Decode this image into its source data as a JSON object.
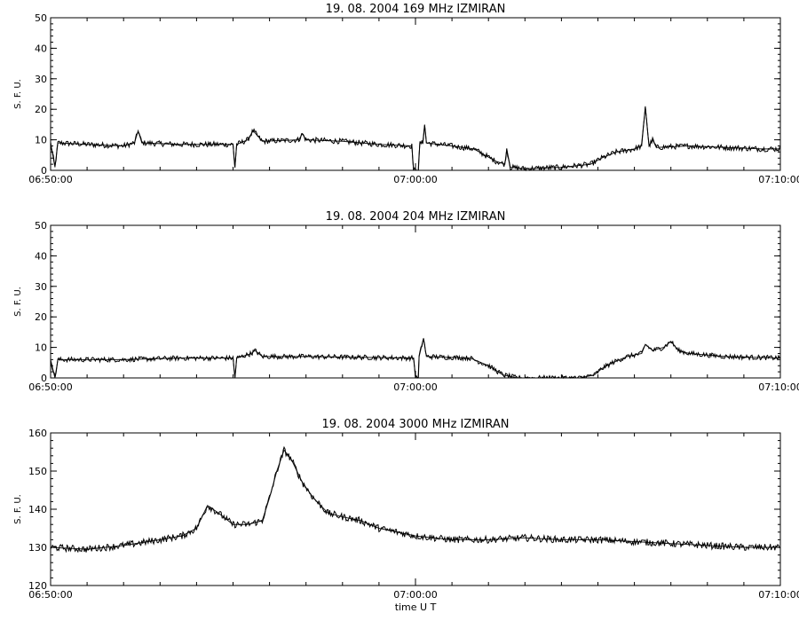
{
  "chart_data": [
    {
      "type": "line",
      "title": "19. 08. 2004   169 MHz   IZMIRAN",
      "ylabel": "S. F. U.",
      "xlabel": "",
      "x_tick_labels": [
        "06:50:00",
        "07:00:00",
        "07:10:00"
      ],
      "xlim_min": [
        0,
        20
      ],
      "ylim": [
        0,
        50
      ],
      "y_ticks": [
        0,
        10,
        20,
        30,
        40,
        50
      ],
      "grid": false,
      "noise": 0.9,
      "points": [
        [
          0.0,
          9
        ],
        [
          0.12,
          1
        ],
        [
          0.2,
          9
        ],
        [
          1.0,
          8.5
        ],
        [
          2.0,
          8
        ],
        [
          2.3,
          9
        ],
        [
          2.4,
          13
        ],
        [
          2.5,
          9
        ],
        [
          3.5,
          8.5
        ],
        [
          5.0,
          8.5
        ],
        [
          5.05,
          1
        ],
        [
          5.1,
          8.5
        ],
        [
          5.4,
          10
        ],
        [
          5.55,
          13
        ],
        [
          5.8,
          9.5
        ],
        [
          6.8,
          10
        ],
        [
          6.9,
          12
        ],
        [
          7.0,
          10
        ],
        [
          8.0,
          9.5
        ],
        [
          9.0,
          8.5
        ],
        [
          9.9,
          8
        ],
        [
          9.95,
          0
        ],
        [
          10.08,
          0
        ],
        [
          10.12,
          9
        ],
        [
          10.2,
          9
        ],
        [
          10.25,
          15
        ],
        [
          10.3,
          9
        ],
        [
          11.0,
          8
        ],
        [
          11.6,
          7
        ],
        [
          12.2,
          3
        ],
        [
          12.45,
          2
        ],
        [
          12.5,
          7
        ],
        [
          12.6,
          1
        ],
        [
          13.0,
          0.5
        ],
        [
          14.0,
          1
        ],
        [
          14.8,
          2
        ],
        [
          15.1,
          4
        ],
        [
          15.5,
          6
        ],
        [
          16.0,
          7
        ],
        [
          16.2,
          8
        ],
        [
          16.3,
          21
        ],
        [
          16.4,
          8
        ],
        [
          16.5,
          10
        ],
        [
          16.6,
          7.5
        ],
        [
          17.5,
          8
        ],
        [
          18.5,
          7.5
        ],
        [
          19.5,
          7
        ],
        [
          20.0,
          7
        ]
      ]
    },
    {
      "type": "line",
      "title": "19. 08. 2004   204 MHz   IZMIRAN",
      "ylabel": "S. F. U.",
      "xlabel": "",
      "x_tick_labels": [
        "06:50:00",
        "07:00:00",
        "07:10:00"
      ],
      "xlim_min": [
        0,
        20
      ],
      "ylim": [
        0,
        50
      ],
      "y_ticks": [
        0,
        10,
        20,
        30,
        40,
        50
      ],
      "grid": false,
      "noise": 0.8,
      "points": [
        [
          0.0,
          6
        ],
        [
          0.12,
          0
        ],
        [
          0.2,
          6
        ],
        [
          2.0,
          6
        ],
        [
          3.5,
          6.5
        ],
        [
          5.0,
          6.5
        ],
        [
          5.05,
          0
        ],
        [
          5.1,
          6.5
        ],
        [
          5.5,
          8
        ],
        [
          5.6,
          9
        ],
        [
          5.8,
          7
        ],
        [
          7.0,
          7
        ],
        [
          9.95,
          6.5
        ],
        [
          10.0,
          0
        ],
        [
          10.08,
          0
        ],
        [
          10.1,
          7
        ],
        [
          10.22,
          13
        ],
        [
          10.3,
          7
        ],
        [
          11.5,
          6.5
        ],
        [
          12.0,
          4
        ],
        [
          12.4,
          1
        ],
        [
          12.8,
          0
        ],
        [
          14.5,
          0
        ],
        [
          14.9,
          1
        ],
        [
          15.1,
          3
        ],
        [
          15.4,
          5
        ],
        [
          15.8,
          7
        ],
        [
          16.2,
          8
        ],
        [
          16.3,
          11
        ],
        [
          16.5,
          9
        ],
        [
          16.8,
          10
        ],
        [
          17.0,
          12
        ],
        [
          17.2,
          9
        ],
        [
          17.5,
          8
        ],
        [
          18.5,
          7
        ],
        [
          20.0,
          6.5
        ]
      ]
    },
    {
      "type": "line",
      "title": "19. 08. 2004   3000 MHz   IZMIRAN",
      "ylabel": "S. F. U.",
      "xlabel": "time  U T",
      "x_tick_labels": [
        "06:50:00",
        "07:00:00",
        "07:10:00"
      ],
      "xlim_min": [
        0,
        20
      ],
      "ylim": [
        120,
        160
      ],
      "y_ticks": [
        120,
        130,
        140,
        150,
        160
      ],
      "grid": false,
      "noise": 0.9,
      "points": [
        [
          0.0,
          130
        ],
        [
          1.0,
          129.5
        ],
        [
          2.0,
          130.5
        ],
        [
          3.0,
          132
        ],
        [
          3.6,
          133
        ],
        [
          4.0,
          135
        ],
        [
          4.3,
          141
        ],
        [
          4.6,
          139
        ],
        [
          5.0,
          136
        ],
        [
          5.4,
          136
        ],
        [
          5.8,
          137
        ],
        [
          6.0,
          143
        ],
        [
          6.2,
          150
        ],
        [
          6.4,
          155.5
        ],
        [
          6.6,
          153
        ],
        [
          6.9,
          147
        ],
        [
          7.2,
          143
        ],
        [
          7.6,
          139
        ],
        [
          8.0,
          138
        ],
        [
          8.5,
          137
        ],
        [
          9.0,
          135
        ],
        [
          9.5,
          134
        ],
        [
          10.0,
          133
        ],
        [
          11.0,
          132
        ],
        [
          12.0,
          132
        ],
        [
          13.0,
          132.5
        ],
        [
          14.0,
          132
        ],
        [
          15.0,
          132
        ],
        [
          16.0,
          131.5
        ],
        [
          17.0,
          131
        ],
        [
          18.0,
          130.5
        ],
        [
          19.0,
          130
        ],
        [
          20.0,
          130
        ]
      ]
    }
  ]
}
